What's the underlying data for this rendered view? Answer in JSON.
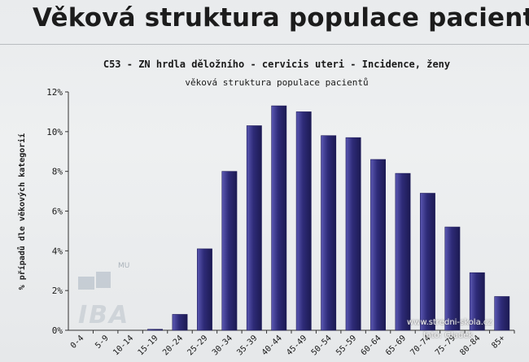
{
  "slide": {
    "title": "Věková struktura populace pacientů"
  },
  "watermark": {
    "site": "www.stredni-skola.cz",
    "photo": "foto: Gladek"
  },
  "logo": {
    "text": "IBA",
    "sub": "MU"
  },
  "chart_data": {
    "type": "bar",
    "title": "C53 - ZN hrdla děložního - cervicis uteri - Incidence, ženy",
    "subtitle": "věková struktura populace pacientů",
    "xlabel": "",
    "ylabel": "% případů dle věkových kategorií",
    "ylim": [
      0,
      12
    ],
    "yticks": [
      "0%",
      "2%",
      "4%",
      "6%",
      "8%",
      "10%",
      "12%"
    ],
    "categories": [
      "0-4",
      "5-9",
      "10-14",
      "15-19",
      "20-24",
      "25-29",
      "30-34",
      "35-39",
      "40-44",
      "45-49",
      "50-54",
      "55-59",
      "60-64",
      "65-69",
      "70-74",
      "75-79",
      "80-84",
      "85+"
    ],
    "values": [
      0,
      0,
      0,
      0.05,
      0.8,
      4.1,
      8.0,
      10.3,
      11.3,
      11.0,
      9.8,
      9.7,
      8.6,
      7.9,
      6.9,
      5.2,
      2.9,
      1.7
    ],
    "bar_color": "#2e2b78",
    "grid": false
  }
}
